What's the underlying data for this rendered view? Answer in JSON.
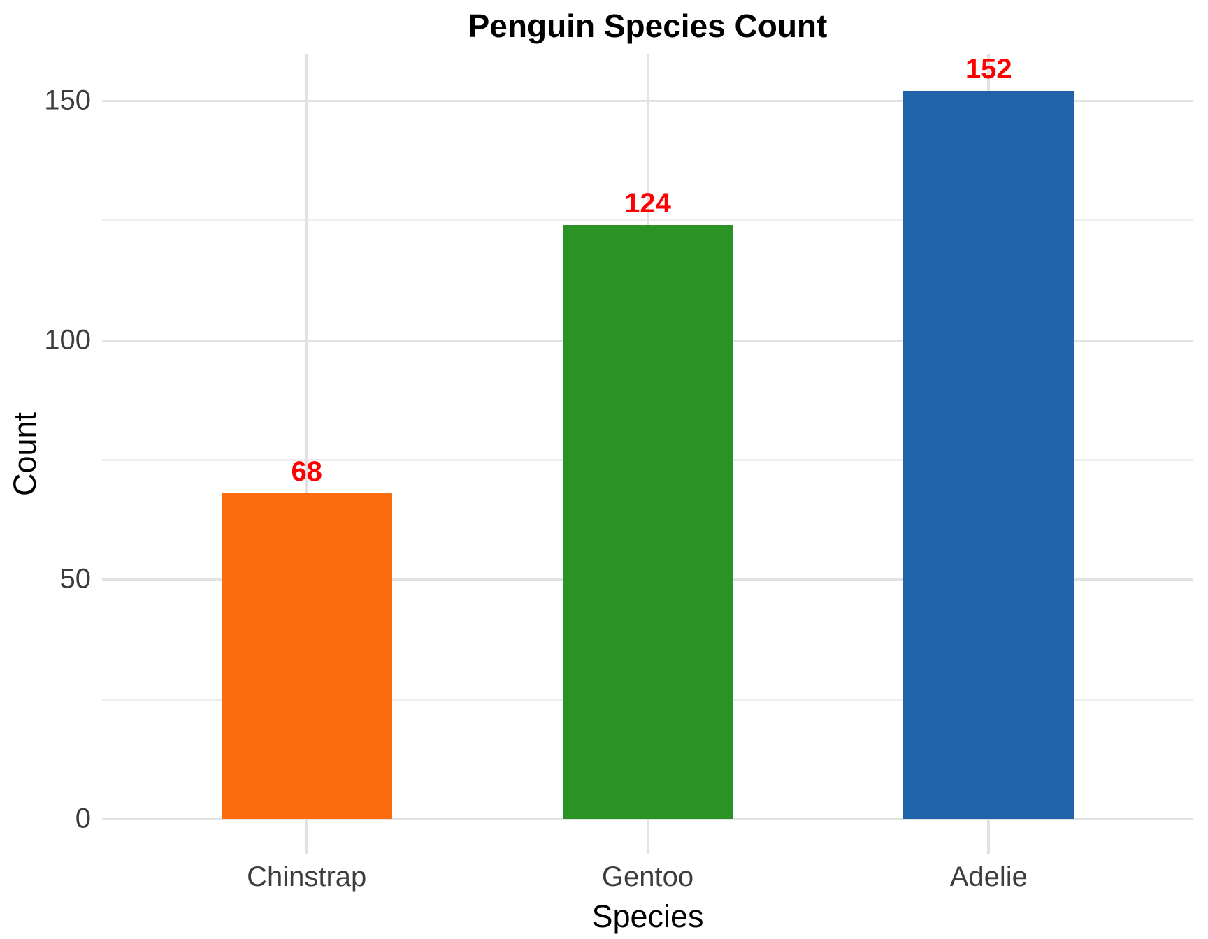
{
  "chart_data": {
    "type": "bar",
    "title": "Penguin Species Count",
    "xlabel": "Species",
    "ylabel": "Count",
    "categories": [
      "Chinstrap",
      "Gentoo",
      "Adelie"
    ],
    "values": [
      68,
      124,
      152
    ],
    "series": [
      {
        "name": "Count",
        "values": [
          68,
          124,
          152
        ]
      }
    ],
    "bar_colors": [
      "#fb6c0e",
      "#2a9323",
      "#1f64a8"
    ],
    "value_labels": [
      "68",
      "124",
      "152"
    ],
    "value_label_color": "#ff0000",
    "yticks_major": [
      0,
      50,
      100,
      150
    ],
    "yticks_minor": [
      25,
      75,
      125
    ],
    "ytick_labels": [
      "0",
      "50",
      "100",
      "150"
    ],
    "ylim": [
      -7.5,
      159.8
    ],
    "grid": "on",
    "legend_position": "none"
  },
  "style": {
    "background_color": "#ffffff",
    "grid_major_color": "#e2e2e2",
    "grid_minor_color": "#eeeeee",
    "tick_label_color": "#3d3d3d",
    "axis_label_color": "#000000",
    "title_color": "#000000"
  }
}
